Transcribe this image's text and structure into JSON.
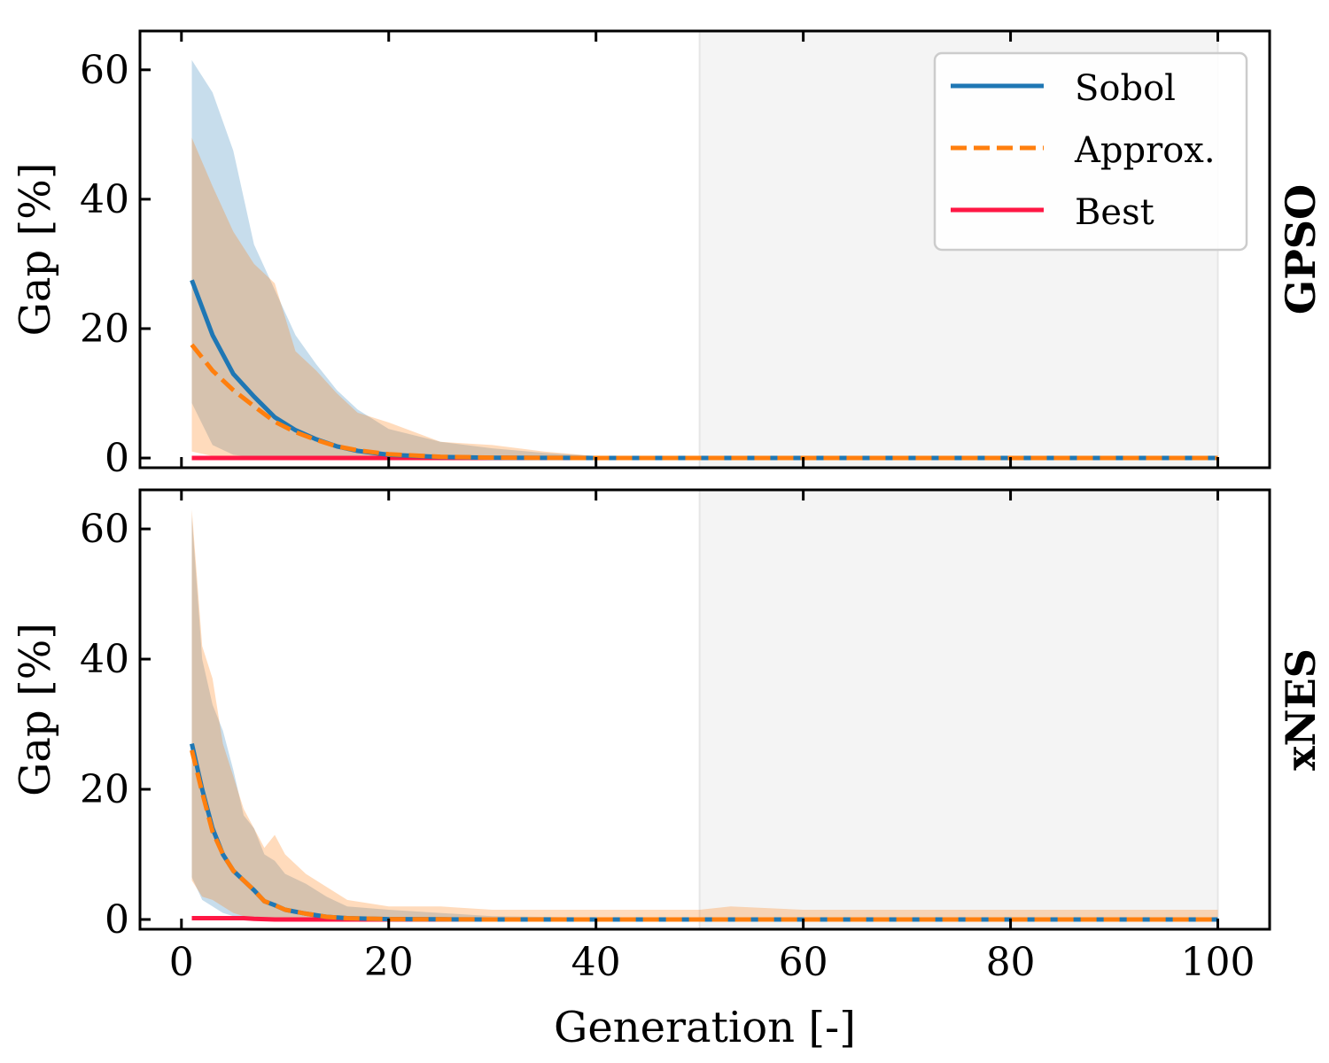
{
  "chart_data": [
    {
      "type": "line",
      "panel_label": "GPSO",
      "ylabel": "Gap [%]",
      "xlabel": "",
      "xlim": [
        -4,
        105
      ],
      "ylim": [
        -1.5,
        66
      ],
      "xticks": [
        0,
        20,
        40,
        60,
        80,
        100
      ],
      "xtick_labels": [
        "0",
        "20",
        "40",
        "60",
        "80",
        "100"
      ],
      "yticks": [
        0,
        20,
        40,
        60
      ],
      "ytick_labels": [
        "0",
        "20",
        "40",
        "60"
      ],
      "shaded_region": {
        "x_start": 50,
        "x_end": 100,
        "color": "#f4f4f4"
      },
      "legend": {
        "position": "top-right",
        "entries": [
          "Sobol",
          "Approx.",
          "Best"
        ]
      },
      "x": [
        1,
        3,
        5,
        7,
        9,
        11,
        13,
        15,
        17,
        20,
        25,
        30,
        35,
        40,
        50,
        60,
        70,
        80,
        90,
        100
      ],
      "series": [
        {
          "name": "Sobol",
          "color": "#1f77b4",
          "style": "solid",
          "values": [
            27.5,
            19,
            13,
            9.5,
            6.3,
            4.3,
            2.9,
            1.8,
            1.1,
            0.5,
            0.15,
            0.05,
            0.02,
            0,
            0,
            0,
            0,
            0,
            0,
            0
          ],
          "band_upper": [
            61.5,
            56.5,
            47.5,
            33,
            26,
            19,
            14.5,
            10.5,
            7.5,
            4.5,
            2.5,
            1.5,
            0.8,
            0.3,
            0,
            0,
            0,
            0,
            0,
            0
          ],
          "band_lower": [
            8.5,
            2,
            0.5,
            0.1,
            0,
            0,
            0,
            0,
            0,
            0,
            0,
            0,
            0,
            0,
            0,
            0,
            0,
            0,
            0,
            0
          ]
        },
        {
          "name": "Approx.",
          "color": "#ff7f0e",
          "style": "dashed",
          "values": [
            17.5,
            13.5,
            10.5,
            8,
            5.6,
            4.0,
            2.8,
            1.8,
            1.2,
            0.6,
            0.2,
            0.06,
            0.02,
            0,
            0,
            0,
            0,
            0,
            0,
            0
          ],
          "band_upper": [
            49.5,
            42,
            35,
            30,
            27,
            16.5,
            13.5,
            10,
            7,
            5.5,
            2.5,
            2,
            1,
            0.3,
            0,
            0,
            0,
            0,
            0,
            0
          ],
          "band_lower": [
            1,
            0.3,
            0,
            0,
            0,
            0,
            0,
            0,
            0,
            0,
            0,
            0,
            0,
            0,
            0,
            0,
            0,
            0,
            0,
            0
          ]
        },
        {
          "name": "Best",
          "color": "#ff1744",
          "style": "solid",
          "values": [
            0,
            0,
            0,
            0,
            0,
            0,
            0,
            0,
            0,
            0,
            0,
            0,
            0,
            0,
            0,
            0,
            0,
            0,
            0,
            0
          ]
        }
      ]
    },
    {
      "type": "line",
      "panel_label": "xNES",
      "ylabel": "Gap [%]",
      "xlabel": "Generation [-]",
      "xlim": [
        -4,
        105
      ],
      "ylim": [
        -1.5,
        66
      ],
      "xticks": [
        0,
        20,
        40,
        60,
        80,
        100
      ],
      "xtick_labels": [
        "0",
        "20",
        "40",
        "60",
        "80",
        "100"
      ],
      "yticks": [
        0,
        20,
        40,
        60
      ],
      "ytick_labels": [
        "0",
        "20",
        "40",
        "60"
      ],
      "shaded_region": {
        "x_start": 50,
        "x_end": 100,
        "color": "#f4f4f4"
      },
      "x": [
        1,
        2,
        3,
        4,
        5,
        6,
        7,
        8,
        9,
        10,
        12,
        14,
        16,
        20,
        25,
        30,
        40,
        50,
        53,
        60,
        70,
        80,
        90,
        100
      ],
      "series": [
        {
          "name": "Sobol",
          "color": "#1f77b4",
          "style": "solid",
          "values": [
            27,
            20,
            14,
            10,
            7.5,
            6,
            4.5,
            2.8,
            2.2,
            1.5,
            0.9,
            0.4,
            0.2,
            0.05,
            0.02,
            0,
            0,
            0,
            0,
            0,
            0,
            0,
            0,
            0
          ],
          "band_upper": [
            62,
            40,
            33,
            29,
            23,
            16,
            14,
            10,
            9,
            7,
            5.5,
            3.5,
            2,
            1.5,
            1,
            0.5,
            0.3,
            0.2,
            0.2,
            0.1,
            0.1,
            0,
            0,
            0
          ],
          "band_lower": [
            6.5,
            3,
            2,
            1,
            0.5,
            0.2,
            0.1,
            0,
            0,
            0,
            0,
            0,
            0,
            0,
            0,
            0,
            0,
            0,
            0,
            0,
            0,
            0,
            0,
            0
          ]
        },
        {
          "name": "Approx.",
          "color": "#ff7f0e",
          "style": "dashed",
          "values": [
            26,
            19.5,
            13.5,
            10,
            7.5,
            6,
            4.5,
            2.8,
            2.2,
            1.5,
            0.9,
            0.4,
            0.2,
            0.05,
            0.02,
            0,
            0,
            0,
            0,
            0,
            0,
            0,
            0,
            0
          ],
          "band_upper": [
            63,
            42,
            37,
            27,
            22,
            17,
            14,
            11,
            13,
            10,
            7,
            5,
            3,
            2,
            2,
            1.5,
            1.5,
            1.5,
            2,
            1.5,
            1.5,
            1.5,
            1.5,
            1.5
          ],
          "band_lower": [
            6,
            3.5,
            3,
            2,
            1,
            0.5,
            0.2,
            0,
            0,
            0,
            0,
            0,
            0,
            0,
            0,
            0,
            0,
            0,
            0,
            0,
            0,
            0,
            0,
            0
          ]
        },
        {
          "name": "Best",
          "color": "#ff1744",
          "style": "solid",
          "values": [
            0.2,
            0.2,
            0.2,
            0.2,
            0.2,
            0.2,
            0.1,
            0.05,
            0,
            0,
            0,
            0,
            0,
            0,
            0,
            0,
            0,
            0,
            0,
            0,
            0,
            0,
            0,
            0
          ]
        }
      ]
    }
  ]
}
